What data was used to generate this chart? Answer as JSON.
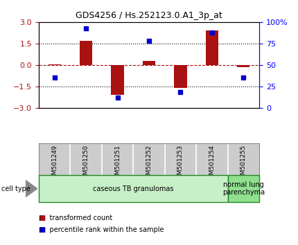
{
  "title": "GDS4256 / Hs.252123.0.A1_3p_at",
  "samples": [
    "GSM501249",
    "GSM501250",
    "GSM501251",
    "GSM501252",
    "GSM501253",
    "GSM501254",
    "GSM501255"
  ],
  "transformed_count": [
    0.02,
    1.7,
    -2.1,
    0.3,
    -1.6,
    2.4,
    -0.15
  ],
  "percentile_rank": [
    35,
    93,
    12,
    78,
    18,
    88,
    35
  ],
  "bar_color": "#aa1111",
  "dot_color": "#0000cc",
  "left_ylim": [
    -3,
    3
  ],
  "right_ylim": [
    0,
    100
  ],
  "left_yticks": [
    -3,
    -1.5,
    0,
    1.5,
    3
  ],
  "right_yticks": [
    0,
    25,
    50,
    75,
    100
  ],
  "right_yticklabels": [
    "0",
    "25",
    "50",
    "75",
    "100%"
  ],
  "groups": [
    {
      "label": "caseous TB granulomas",
      "samples": [
        0,
        1,
        2,
        3,
        4,
        5
      ],
      "color": "#c8f0c8"
    },
    {
      "label": "normal lung\nparenchyma",
      "samples": [
        6
      ],
      "color": "#90e090"
    }
  ],
  "cell_type_label": "cell type",
  "legend_items": [
    {
      "color": "#aa1111",
      "label": "transformed count"
    },
    {
      "color": "#0000cc",
      "label": "percentile rank within the sample"
    }
  ],
  "bg_color": "#ffffff",
  "bar_width": 0.4,
  "sample_box_color": "#cccccc",
  "sample_box_edge": "#888888"
}
